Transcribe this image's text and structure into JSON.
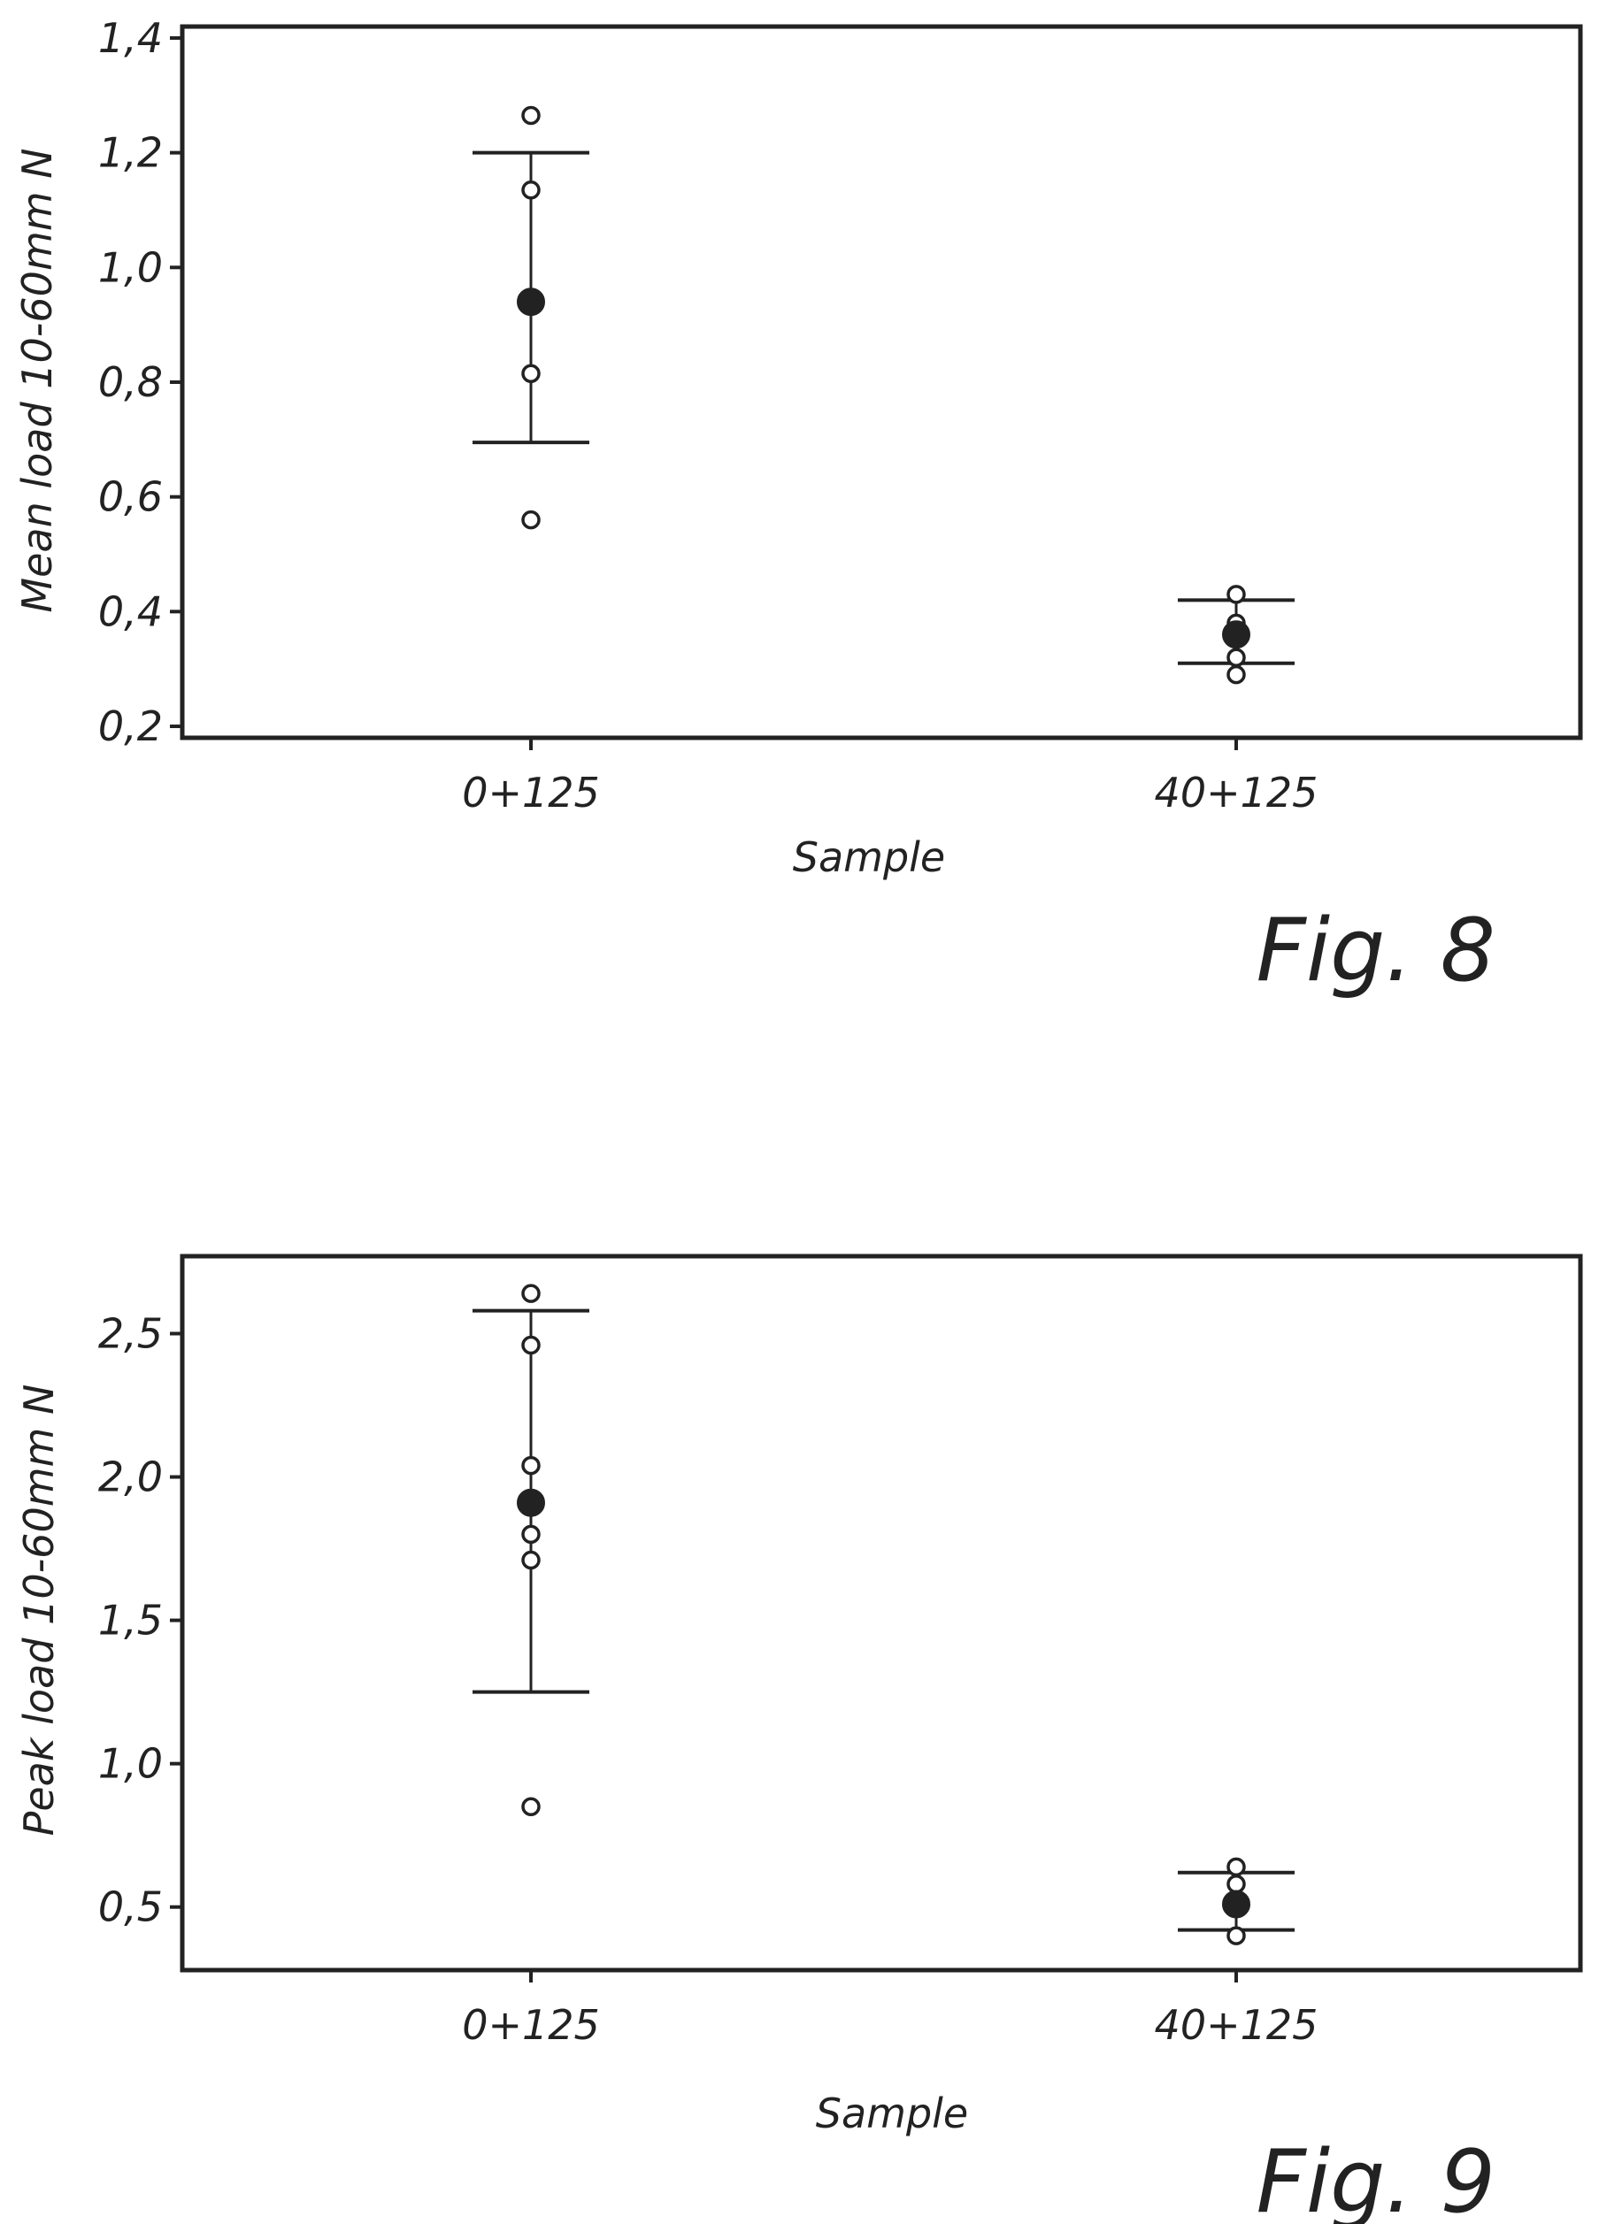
{
  "chart_data": [
    {
      "type": "scatter",
      "figure_label": "Fig. 8",
      "xlabel": "Sample",
      "ylabel": "Mean load 10-60mm N",
      "categories": [
        "0+125",
        "40+125"
      ],
      "ylim": [
        0.18,
        1.42
      ],
      "yticks": [
        0.2,
        0.4,
        0.6,
        0.8,
        1.0,
        1.2,
        1.4
      ],
      "ytick_labels": [
        "0,2",
        "0,4",
        "0,6",
        "0,8",
        "1,0",
        "1,2",
        "1,4"
      ],
      "grid": false,
      "groups": [
        {
          "category": "0+125",
          "mean": 0.94,
          "err_low": 0.695,
          "err_high": 1.2,
          "points": [
            1.265,
            1.135,
            0.815,
            0.56
          ]
        },
        {
          "category": "40+125",
          "mean": 0.36,
          "err_low": 0.31,
          "err_high": 0.42,
          "points": [
            0.43,
            0.38,
            0.32,
            0.29
          ]
        }
      ]
    },
    {
      "type": "scatter",
      "figure_label": "Fig. 9",
      "xlabel": "Sample",
      "ylabel": "Peak load 10-60mm N",
      "categories": [
        "0+125",
        "40+125"
      ],
      "ylim": [
        0.28,
        2.77
      ],
      "yticks": [
        0.5,
        1.0,
        1.5,
        2.0,
        2.5
      ],
      "ytick_labels": [
        "0,5",
        "1,0",
        "1,5",
        "2,0",
        "2,5"
      ],
      "grid": false,
      "groups": [
        {
          "category": "0+125",
          "mean": 1.91,
          "err_low": 1.25,
          "err_high": 2.58,
          "points": [
            2.64,
            2.46,
            2.04,
            1.8,
            1.71,
            0.85
          ]
        },
        {
          "category": "40+125",
          "mean": 0.51,
          "err_low": 0.42,
          "err_high": 0.62,
          "points": [
            0.64,
            0.58,
            0.4
          ]
        }
      ]
    }
  ]
}
